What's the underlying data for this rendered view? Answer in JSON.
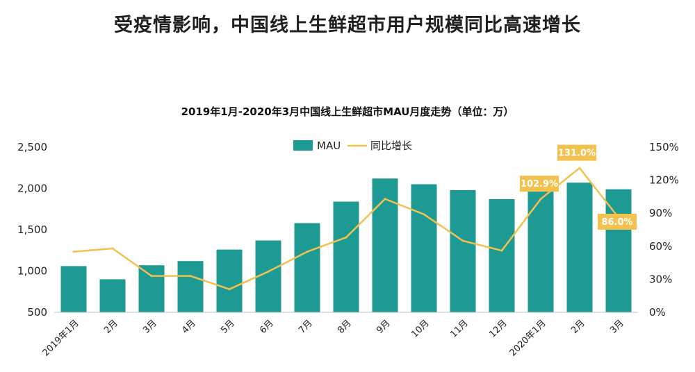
{
  "page": {
    "title": "受疫情影响，中国线上生鲜超市用户规模同比高速增长"
  },
  "chart_data": {
    "type": "bar",
    "title": "2019年1月-2020年3月中国线上生鲜超市MAU月度走势（单位：万）",
    "categories": [
      "2019年1月",
      "2月",
      "3月",
      "4月",
      "5月",
      "6月",
      "7月",
      "8月",
      "9月",
      "10月",
      "11月",
      "12月",
      "2020年1月",
      "2月",
      "3月"
    ],
    "series": [
      {
        "name": "MAU",
        "type": "bar",
        "axis": "left",
        "color": "#1E9A95",
        "values": [
          1060,
          900,
          1070,
          1120,
          1260,
          1370,
          1580,
          1840,
          2120,
          2050,
          1980,
          1870,
          2140,
          2070,
          1990
        ]
      },
      {
        "name": "同比增长",
        "type": "line",
        "axis": "right",
        "color": "#F2C14E",
        "values": [
          55,
          58,
          33,
          33,
          21,
          37,
          55,
          68,
          103,
          89,
          65,
          56,
          102.9,
          131.0,
          86.0
        ]
      }
    ],
    "y_left": {
      "min": 500,
      "max": 2500,
      "ticks": [
        500,
        1000,
        1500,
        2000,
        2500
      ],
      "tick_labels": [
        "500",
        "1,000",
        "1,500",
        "2,000",
        "2,500"
      ]
    },
    "y_right": {
      "min": 0,
      "max": 150,
      "ticks": [
        0,
        30,
        60,
        90,
        120,
        150
      ],
      "tick_labels": [
        "0%",
        "30%",
        "60%",
        "90%",
        "120%",
        "150%"
      ]
    },
    "annotations": [
      {
        "index": 12,
        "label": "102.9%"
      },
      {
        "index": 13,
        "label": "131.0%"
      },
      {
        "index": 14,
        "label": "86.0%"
      }
    ],
    "legend": {
      "position": "top-center",
      "items": [
        "MAU",
        "同比增长"
      ]
    },
    "grid": false
  }
}
